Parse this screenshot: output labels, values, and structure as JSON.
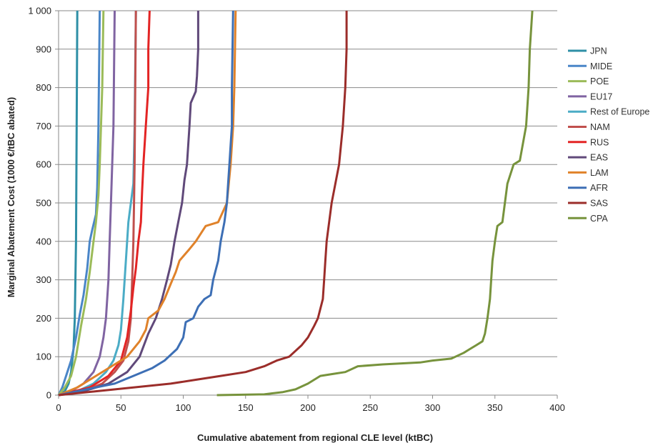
{
  "chart_data": {
    "type": "line",
    "title": "",
    "xlabel": "Cumulative abatement from regional CLE level (ktBC)",
    "ylabel": "Marginal Abatement Cost (1000 €/tBC abated)",
    "xlim": [
      0,
      400
    ],
    "ylim": [
      0,
      1000
    ],
    "x_ticks": [
      0,
      50,
      100,
      150,
      200,
      250,
      300,
      350,
      400
    ],
    "x_tick_labels": [
      "0",
      "50",
      "100",
      "150",
      "200",
      "250",
      "300",
      "350",
      "400"
    ],
    "y_ticks": [
      0,
      100,
      200,
      300,
      400,
      500,
      600,
      700,
      800,
      900,
      1000
    ],
    "y_tick_labels": [
      "0",
      "100",
      "200",
      "300",
      "400",
      "500",
      "600",
      "700",
      "800",
      "900",
      "1 000"
    ],
    "grid": "horizontal",
    "legend_position": "right",
    "series": [
      {
        "name": "JPN",
        "color": "#2e8fa6",
        "points": [
          [
            0,
            0
          ],
          [
            5,
            10
          ],
          [
            8,
            30
          ],
          [
            10,
            60
          ],
          [
            12,
            120
          ],
          [
            13,
            200
          ],
          [
            14,
            400
          ],
          [
            14.5,
            700
          ],
          [
            15,
            1000
          ]
        ]
      },
      {
        "name": "MIDE",
        "color": "#4a86c8",
        "points": [
          [
            0,
            0
          ],
          [
            3,
            20
          ],
          [
            6,
            50
          ],
          [
            10,
            90
          ],
          [
            14,
            150
          ],
          [
            17,
            210
          ],
          [
            20,
            260
          ],
          [
            23,
            330
          ],
          [
            25,
            400
          ],
          [
            27,
            430
          ],
          [
            30,
            470
          ],
          [
            31,
            540
          ],
          [
            32,
            700
          ],
          [
            33,
            1000
          ]
        ]
      },
      {
        "name": "POE",
        "color": "#9bbb59",
        "points": [
          [
            0,
            0
          ],
          [
            5,
            20
          ],
          [
            10,
            50
          ],
          [
            14,
            100
          ],
          [
            18,
            180
          ],
          [
            22,
            250
          ],
          [
            25,
            320
          ],
          [
            28,
            400
          ],
          [
            30,
            450
          ],
          [
            32,
            520
          ],
          [
            33,
            600
          ],
          [
            35,
            800
          ],
          [
            36,
            1000
          ]
        ]
      },
      {
        "name": "EU17",
        "color": "#8064a2",
        "points": [
          [
            0,
            0
          ],
          [
            10,
            10
          ],
          [
            20,
            30
          ],
          [
            28,
            60
          ],
          [
            33,
            100
          ],
          [
            36,
            150
          ],
          [
            38,
            200
          ],
          [
            40,
            300
          ],
          [
            41,
            400
          ],
          [
            42,
            500
          ],
          [
            44,
            700
          ],
          [
            45,
            1000
          ]
        ]
      },
      {
        "name": "Rest of Europe",
        "color": "#4bacc6",
        "points": [
          [
            0,
            0
          ],
          [
            15,
            10
          ],
          [
            28,
            30
          ],
          [
            38,
            60
          ],
          [
            44,
            90
          ],
          [
            48,
            130
          ],
          [
            50,
            170
          ],
          [
            52,
            250
          ],
          [
            54,
            350
          ],
          [
            56,
            450
          ],
          [
            58,
            500
          ],
          [
            60,
            550
          ],
          [
            61,
            700
          ],
          [
            62,
            1000
          ]
        ]
      },
      {
        "name": "NAM",
        "color": "#c0504d",
        "points": [
          [
            0,
            0
          ],
          [
            20,
            10
          ],
          [
            35,
            30
          ],
          [
            45,
            60
          ],
          [
            52,
            90
          ],
          [
            56,
            140
          ],
          [
            58,
            200
          ],
          [
            59,
            300
          ],
          [
            60,
            400
          ],
          [
            60.5,
            500
          ],
          [
            61,
            600
          ],
          [
            61.5,
            800
          ],
          [
            62,
            1000
          ]
        ]
      },
      {
        "name": "RUS",
        "color": "#e32424",
        "points": [
          [
            0,
            0
          ],
          [
            25,
            20
          ],
          [
            40,
            50
          ],
          [
            50,
            90
          ],
          [
            55,
            150
          ],
          [
            58,
            220
          ],
          [
            60,
            280
          ],
          [
            62,
            330
          ],
          [
            64,
            400
          ],
          [
            66,
            450
          ],
          [
            67,
            530
          ],
          [
            68,
            600
          ],
          [
            70,
            700
          ],
          [
            72,
            800
          ],
          [
            72,
            900
          ],
          [
            73,
            1000
          ]
        ]
      },
      {
        "name": "EAS",
        "color": "#60497a",
        "points": [
          [
            0,
            0
          ],
          [
            20,
            10
          ],
          [
            40,
            30
          ],
          [
            55,
            60
          ],
          [
            65,
            100
          ],
          [
            72,
            160
          ],
          [
            78,
            200
          ],
          [
            83,
            250
          ],
          [
            87,
            300
          ],
          [
            90,
            340
          ],
          [
            93,
            400
          ],
          [
            96,
            450
          ],
          [
            99,
            500
          ],
          [
            101,
            560
          ],
          [
            103,
            600
          ],
          [
            105,
            700
          ],
          [
            106,
            760
          ],
          [
            110,
            790
          ],
          [
            111,
            830
          ],
          [
            112,
            900
          ],
          [
            112,
            1000
          ]
        ]
      },
      {
        "name": "LAM",
        "color": "#e0822a",
        "points": [
          [
            0,
            0
          ],
          [
            15,
            20
          ],
          [
            30,
            50
          ],
          [
            45,
            80
          ],
          [
            55,
            100
          ],
          [
            65,
            140
          ],
          [
            70,
            170
          ],
          [
            72,
            200
          ],
          [
            80,
            220
          ],
          [
            85,
            250
          ],
          [
            90,
            290
          ],
          [
            94,
            320
          ],
          [
            97,
            350
          ],
          [
            105,
            380
          ],
          [
            110,
            400
          ],
          [
            118,
            440
          ],
          [
            128,
            450
          ],
          [
            135,
            500
          ],
          [
            138,
            600
          ],
          [
            140,
            700
          ],
          [
            141,
            800
          ],
          [
            142,
            1000
          ]
        ]
      },
      {
        "name": "AFR",
        "color": "#3d6fb5",
        "points": [
          [
            0,
            0
          ],
          [
            15,
            10
          ],
          [
            30,
            20
          ],
          [
            45,
            30
          ],
          [
            60,
            50
          ],
          [
            75,
            70
          ],
          [
            85,
            90
          ],
          [
            95,
            120
          ],
          [
            100,
            150
          ],
          [
            102,
            190
          ],
          [
            108,
            200
          ],
          [
            112,
            230
          ],
          [
            117,
            250
          ],
          [
            122,
            260
          ],
          [
            124,
            300
          ],
          [
            128,
            350
          ],
          [
            130,
            400
          ],
          [
            133,
            450
          ],
          [
            135,
            500
          ],
          [
            136,
            550
          ],
          [
            137,
            600
          ],
          [
            138,
            650
          ],
          [
            139,
            700
          ],
          [
            139,
            800
          ],
          [
            140,
            1000
          ]
        ]
      },
      {
        "name": "SAS",
        "color": "#9b2d2a",
        "points": [
          [
            0,
            0
          ],
          [
            30,
            10
          ],
          [
            60,
            20
          ],
          [
            90,
            30
          ],
          [
            110,
            40
          ],
          [
            130,
            50
          ],
          [
            150,
            60
          ],
          [
            165,
            75
          ],
          [
            175,
            90
          ],
          [
            185,
            100
          ],
          [
            195,
            130
          ],
          [
            200,
            150
          ],
          [
            205,
            180
          ],
          [
            208,
            200
          ],
          [
            212,
            250
          ],
          [
            213,
            300
          ],
          [
            214,
            350
          ],
          [
            215,
            400
          ],
          [
            217,
            450
          ],
          [
            219,
            500
          ],
          [
            222,
            550
          ],
          [
            225,
            600
          ],
          [
            228,
            700
          ],
          [
            230,
            800
          ],
          [
            231,
            900
          ],
          [
            231,
            1000
          ]
        ]
      },
      {
        "name": "CPA",
        "color": "#77933c",
        "points": [
          [
            127,
            0
          ],
          [
            165,
            2
          ],
          [
            180,
            8
          ],
          [
            190,
            15
          ],
          [
            200,
            30
          ],
          [
            210,
            50
          ],
          [
            220,
            55
          ],
          [
            230,
            60
          ],
          [
            240,
            75
          ],
          [
            260,
            80
          ],
          [
            290,
            85
          ],
          [
            300,
            90
          ],
          [
            315,
            95
          ],
          [
            325,
            110
          ],
          [
            330,
            120
          ],
          [
            335,
            130
          ],
          [
            340,
            140
          ],
          [
            342,
            160
          ],
          [
            344,
            200
          ],
          [
            346,
            250
          ],
          [
            347,
            300
          ],
          [
            348,
            350
          ],
          [
            350,
            400
          ],
          [
            352,
            440
          ],
          [
            356,
            450
          ],
          [
            358,
            500
          ],
          [
            360,
            550
          ],
          [
            365,
            600
          ],
          [
            370,
            610
          ],
          [
            375,
            700
          ],
          [
            377,
            800
          ],
          [
            378,
            900
          ],
          [
            380,
            1000
          ]
        ]
      }
    ]
  }
}
